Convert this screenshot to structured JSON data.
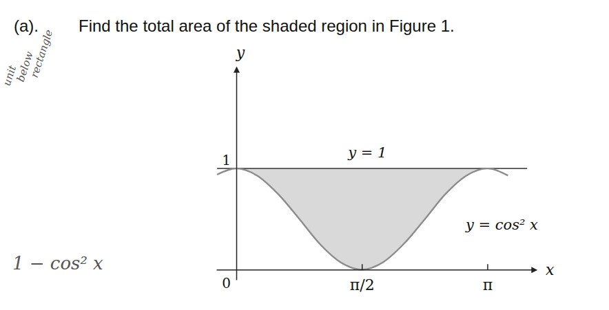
{
  "question": {
    "label": "(a).",
    "text": "Find the total area of the shaded region in Figure 1."
  },
  "handwriting": {
    "margin_notes": [
      "unit",
      "below",
      "rectangle"
    ],
    "expression": "1 − cos² x"
  },
  "chart_data": {
    "type": "line",
    "x": [
      -0.24,
      0,
      0.26,
      0.52,
      0.79,
      1.05,
      1.31,
      1.57,
      1.83,
      2.09,
      2.36,
      2.62,
      2.88,
      3.14,
      3.4,
      3.64
    ],
    "series": [
      {
        "name": "y = 1",
        "color": "#4d4d4d",
        "values": [
          1,
          1,
          1,
          1,
          1,
          1,
          1,
          1,
          1,
          1,
          1,
          1,
          1,
          1,
          1,
          1
        ]
      },
      {
        "name": "y = cos² x",
        "color": "#8c8c8c",
        "values": [
          0.94,
          1,
          0.93,
          0.75,
          0.5,
          0.25,
          0.07,
          0,
          0.07,
          0.25,
          0.5,
          0.75,
          0.93,
          1,
          0.93,
          null
        ]
      }
    ],
    "shade": {
      "x": [
        0,
        3.14
      ],
      "color": "#d9d9d9"
    },
    "xlabel": "x",
    "ylabel": "y",
    "xlim": [
      -0.25,
      3.75
    ],
    "ylim": [
      -0.1,
      2.0
    ],
    "xticks": [
      {
        "value": 1.5708,
        "label": "π/2"
      },
      {
        "value": 3.1416,
        "label": "π"
      }
    ],
    "yticks": [
      0,
      1
    ],
    "grid": false
  }
}
